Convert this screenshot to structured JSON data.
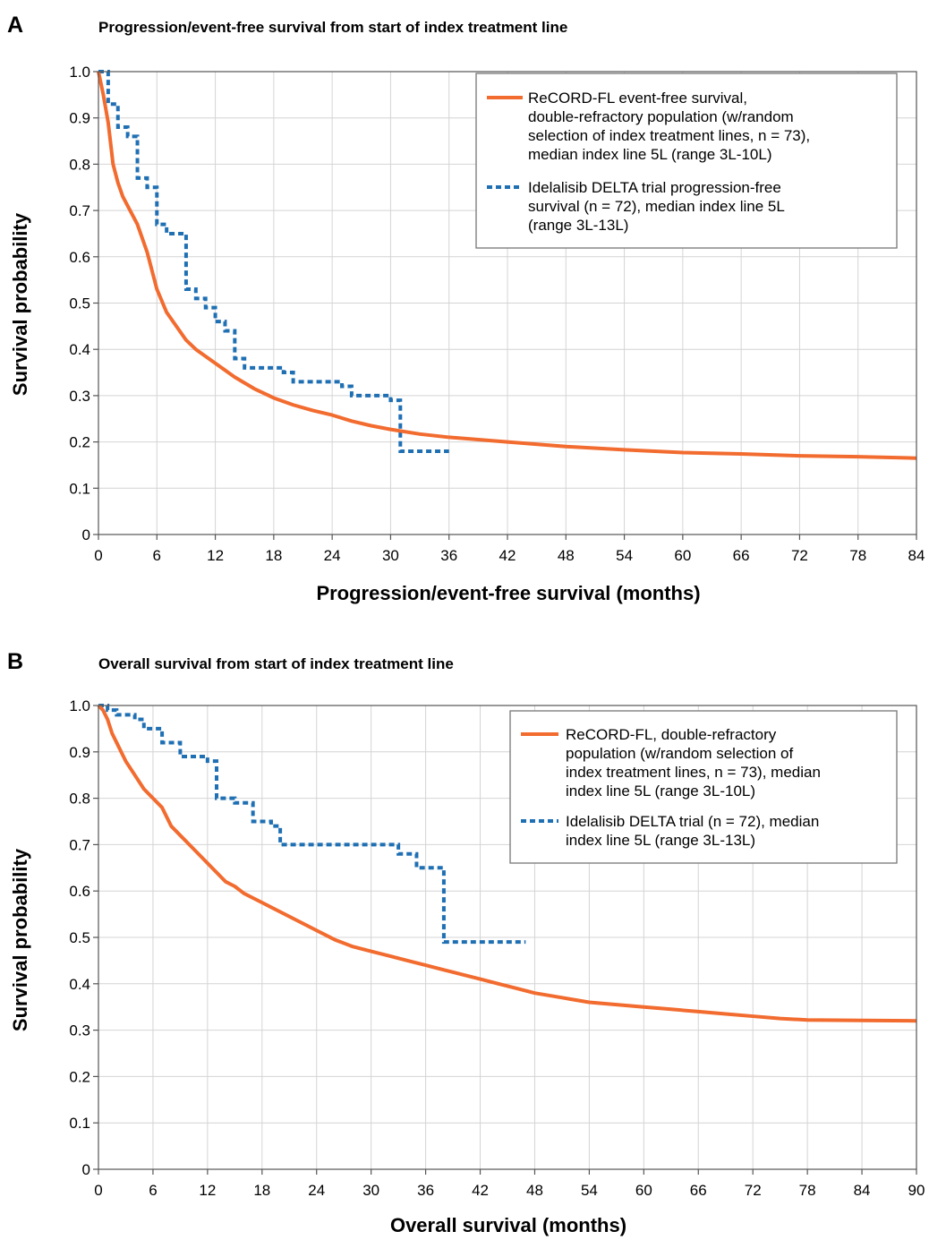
{
  "colors": {
    "recordfl": "#f26b2f",
    "delta": "#1f6fb3"
  },
  "chart_data": [
    {
      "type": "line",
      "panel_letter": "A",
      "title": "Progression/event-free survival from start of index treatment line",
      "xlabel": "Progression/event-free survival (months)",
      "ylabel": "Survival probability",
      "xlim": [
        0,
        84
      ],
      "ylim": [
        0,
        1.0
      ],
      "xticks": [
        0,
        6,
        12,
        18,
        24,
        30,
        36,
        42,
        48,
        54,
        60,
        66,
        72,
        78,
        84
      ],
      "yticks": [
        0,
        0.1,
        0.2,
        0.3,
        0.4,
        0.5,
        0.6,
        0.7,
        0.8,
        0.9,
        1.0
      ],
      "ytick_labels": [
        "0",
        "0.1",
        "0.2",
        "0.3",
        "0.4",
        "0.5",
        "0.6",
        "0.7",
        "0.8",
        "0.9",
        "1.0"
      ],
      "grid": true,
      "legend_position": "top-right",
      "series": [
        {
          "key": "recordfl",
          "style": "solid",
          "legend_lines": [
            "ReCORD-FL event-free survival,",
            "double-refractory population (w/random",
            "selection of index treatment lines, n = 73),",
            "median index line 5L (range 3L-10L)"
          ],
          "x": [
            0,
            0.5,
            1,
            1.5,
            2,
            2.5,
            3,
            4,
            5,
            6,
            7,
            8,
            9,
            10,
            11,
            12,
            14,
            16,
            18,
            20,
            22,
            24,
            26,
            28,
            30,
            33,
            36,
            42,
            48,
            54,
            60,
            66,
            72,
            78,
            84
          ],
          "y": [
            1.0,
            0.95,
            0.89,
            0.8,
            0.76,
            0.73,
            0.71,
            0.67,
            0.61,
            0.53,
            0.48,
            0.45,
            0.42,
            0.4,
            0.385,
            0.37,
            0.34,
            0.315,
            0.295,
            0.28,
            0.268,
            0.258,
            0.245,
            0.235,
            0.227,
            0.217,
            0.21,
            0.2,
            0.19,
            0.183,
            0.177,
            0.174,
            0.17,
            0.168,
            0.165
          ]
        },
        {
          "key": "delta",
          "style": "dashed-step",
          "legend_lines": [
            "Idelalisib DELTA trial progression-free",
            "survival (n = 72), median index line 5L",
            "(range 3L-13L)"
          ],
          "x": [
            0,
            1,
            2,
            3,
            4,
            5,
            6,
            7,
            8,
            9,
            10,
            11,
            12,
            13,
            14,
            15,
            19,
            20,
            25,
            26,
            29,
            30,
            31,
            36
          ],
          "y": [
            1.0,
            0.93,
            0.88,
            0.86,
            0.77,
            0.75,
            0.67,
            0.65,
            0.65,
            0.53,
            0.51,
            0.49,
            0.46,
            0.44,
            0.38,
            0.36,
            0.35,
            0.33,
            0.32,
            0.3,
            0.3,
            0.29,
            0.18,
            0.18
          ]
        }
      ]
    },
    {
      "type": "line",
      "panel_letter": "B",
      "title": "Overall survival from start of index treatment line",
      "xlabel": "Overall survival (months)",
      "ylabel": "Survival probability",
      "xlim": [
        0,
        90
      ],
      "ylim": [
        0,
        1.0
      ],
      "xticks": [
        0,
        6,
        12,
        18,
        24,
        30,
        36,
        42,
        48,
        54,
        60,
        66,
        72,
        78,
        84,
        90
      ],
      "yticks": [
        0,
        0.1,
        0.2,
        0.3,
        0.4,
        0.5,
        0.6,
        0.7,
        0.8,
        0.9,
        1.0
      ],
      "ytick_labels": [
        "0",
        "0.1",
        "0.2",
        "0.3",
        "0.4",
        "0.5",
        "0.6",
        "0.7",
        "0.8",
        "0.9",
        "1.0"
      ],
      "grid": true,
      "legend_position": "top-right",
      "series": [
        {
          "key": "recordfl",
          "style": "solid",
          "legend_lines": [
            "ReCORD-FL, double-refractory",
            "population (w/random selection of",
            "index treatment lines, n = 73), median",
            "index line 5L (range 3L-10L)"
          ],
          "x": [
            0,
            0.5,
            1,
            1.5,
            2,
            2.5,
            3,
            4,
            5,
            6,
            7,
            8,
            9,
            10,
            11,
            12,
            13,
            14,
            15,
            16,
            17,
            18,
            20,
            22,
            24,
            26,
            28,
            30,
            32,
            34,
            36,
            38,
            40,
            42,
            44,
            46,
            48,
            51,
            54,
            57,
            60,
            63,
            66,
            69,
            72,
            75,
            78,
            84,
            90
          ],
          "y": [
            1.0,
            0.99,
            0.97,
            0.94,
            0.92,
            0.9,
            0.88,
            0.85,
            0.82,
            0.8,
            0.78,
            0.74,
            0.72,
            0.7,
            0.68,
            0.66,
            0.64,
            0.62,
            0.61,
            0.595,
            0.585,
            0.575,
            0.555,
            0.535,
            0.515,
            0.495,
            0.48,
            0.47,
            0.46,
            0.45,
            0.44,
            0.43,
            0.42,
            0.41,
            0.4,
            0.39,
            0.38,
            0.37,
            0.36,
            0.355,
            0.35,
            0.345,
            0.34,
            0.335,
            0.33,
            0.325,
            0.322,
            0.321,
            0.32
          ]
        },
        {
          "key": "delta",
          "style": "dashed-step",
          "legend_lines": [
            "Idelalisib DELTA trial (n = 72), median",
            "index line 5L (range 3L-13L)"
          ],
          "x": [
            0,
            1,
            2,
            4,
            5,
            7,
            9,
            12,
            13,
            15,
            17,
            19,
            20,
            31,
            33,
            35,
            37,
            38,
            47
          ],
          "y": [
            1.0,
            0.99,
            0.98,
            0.97,
            0.95,
            0.92,
            0.89,
            0.88,
            0.8,
            0.79,
            0.75,
            0.74,
            0.7,
            0.7,
            0.68,
            0.65,
            0.65,
            0.49,
            0.49
          ]
        }
      ]
    }
  ]
}
